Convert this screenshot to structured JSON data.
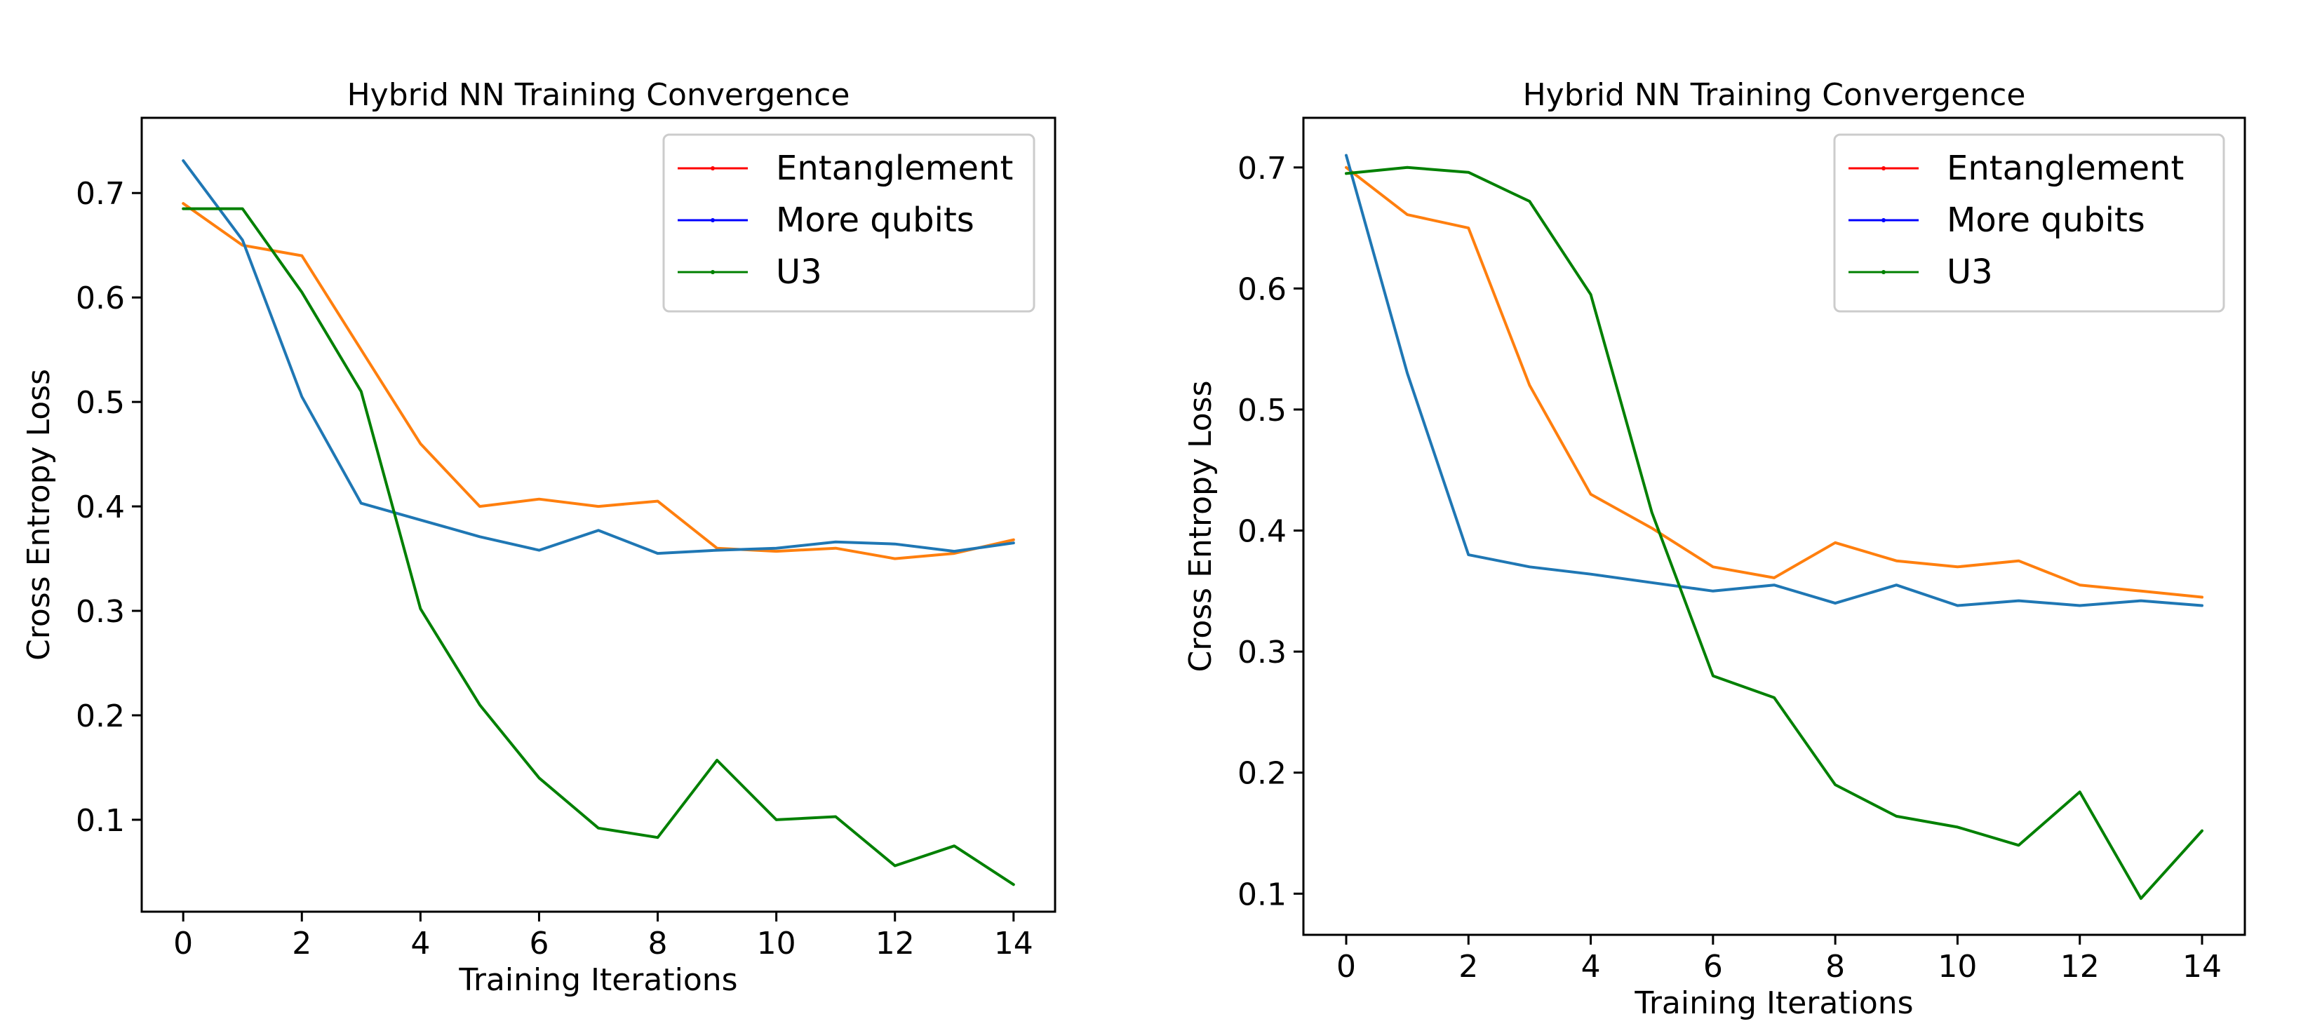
{
  "chart_data": [
    {
      "type": "line",
      "title": "Hybrid NN Training Convergence",
      "xlabel": "Training Iterations",
      "ylabel": "Cross Entropy Loss",
      "x": [
        0,
        1,
        2,
        3,
        4,
        5,
        6,
        7,
        8,
        9,
        10,
        11,
        12,
        13,
        14
      ],
      "xlim": [
        -0.7,
        14.7
      ],
      "ylim": [
        0.012,
        0.772
      ],
      "xticks": [
        "0",
        "2",
        "4",
        "6",
        "8",
        "10",
        "12",
        "14"
      ],
      "yticks": [
        "0.1",
        "0.2",
        "0.3",
        "0.4",
        "0.5",
        "0.6",
        "0.7"
      ],
      "legend_position": "top-right",
      "grid": false,
      "series": [
        {
          "name": "Entanglement",
          "legend_color": "#ff0000",
          "color": "#ff7f0e",
          "values": [
            0.69,
            0.65,
            0.64,
            0.55,
            0.46,
            0.4,
            0.407,
            0.4,
            0.405,
            0.36,
            0.357,
            0.36,
            0.35,
            0.355,
            0.368
          ]
        },
        {
          "name": "More qubits",
          "legend_color": "#0000ff",
          "color": "#1f77b4",
          "values": [
            0.731,
            0.655,
            0.505,
            0.403,
            0.387,
            0.371,
            0.358,
            0.377,
            0.355,
            0.358,
            0.36,
            0.366,
            0.364,
            0.357,
            0.365
          ]
        },
        {
          "name": "U3",
          "legend_color": "#008000",
          "color": "#008000",
          "values": [
            0.685,
            0.685,
            0.605,
            0.51,
            0.302,
            0.21,
            0.14,
            0.092,
            0.083,
            0.157,
            0.1,
            0.103,
            0.056,
            0.075,
            0.038
          ]
        }
      ]
    },
    {
      "type": "line",
      "title": "Hybrid NN Training Convergence",
      "xlabel": "Training Iterations",
      "ylabel": "Cross Entropy Loss",
      "x": [
        0,
        1,
        2,
        3,
        4,
        5,
        6,
        7,
        8,
        9,
        10,
        11,
        12,
        13,
        14
      ],
      "xlim": [
        -0.7,
        14.7
      ],
      "ylim": [
        0.066,
        0.741
      ],
      "xticks": [
        "0",
        "2",
        "4",
        "6",
        "8",
        "10",
        "12",
        "14"
      ],
      "yticks": [
        "0.1",
        "0.2",
        "0.3",
        "0.4",
        "0.5",
        "0.6",
        "0.7"
      ],
      "legend_position": "top-right",
      "grid": false,
      "series": [
        {
          "name": "Entanglement",
          "legend_color": "#ff0000",
          "color": "#ff7f0e",
          "values": [
            0.7,
            0.661,
            0.65,
            0.52,
            0.43,
            0.402,
            0.37,
            0.361,
            0.39,
            0.375,
            0.37,
            0.375,
            0.355,
            0.35,
            0.345
          ]
        },
        {
          "name": "More qubits",
          "legend_color": "#0000ff",
          "color": "#1f77b4",
          "values": [
            0.71,
            0.53,
            0.38,
            0.37,
            0.364,
            0.357,
            0.35,
            0.355,
            0.34,
            0.355,
            0.338,
            0.342,
            0.338,
            0.342,
            0.338
          ]
        },
        {
          "name": "U3",
          "legend_color": "#008000",
          "color": "#008000",
          "values": [
            0.695,
            0.7,
            0.696,
            0.672,
            0.595,
            0.415,
            0.28,
            0.262,
            0.19,
            0.164,
            0.155,
            0.14,
            0.184,
            0.096,
            0.152
          ]
        }
      ]
    }
  ]
}
